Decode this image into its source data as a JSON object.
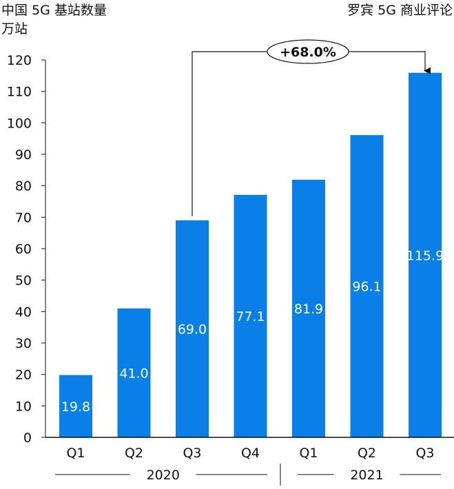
{
  "header": {
    "title": "中国 5G 基站数量",
    "unit": "万站",
    "source": "罗宾 5G 商业评论"
  },
  "chart_data": {
    "type": "bar",
    "title": "中国 5G 基站数量",
    "ylabel": "万站",
    "ylim": [
      0,
      120
    ],
    "yticks": [
      0,
      10,
      20,
      30,
      40,
      50,
      60,
      70,
      80,
      90,
      100,
      110,
      120
    ],
    "categories": [
      "Q1",
      "Q2",
      "Q3",
      "Q4",
      "Q1",
      "Q2",
      "Q3"
    ],
    "values": [
      19.8,
      41.0,
      69.0,
      77.1,
      81.9,
      96.1,
      115.9
    ],
    "data_labels": [
      "19.8",
      "41.0",
      "69.0",
      "77.1",
      "81.9",
      "96.1",
      "115.9"
    ],
    "year_groups": [
      {
        "label": "2020",
        "count": 4
      },
      {
        "label": "2021",
        "count": 3
      }
    ],
    "annotation": {
      "text": "+68.0%",
      "from_index": 2,
      "to_index": 6
    },
    "bar_color": "#0a7fe8",
    "grid": false
  }
}
